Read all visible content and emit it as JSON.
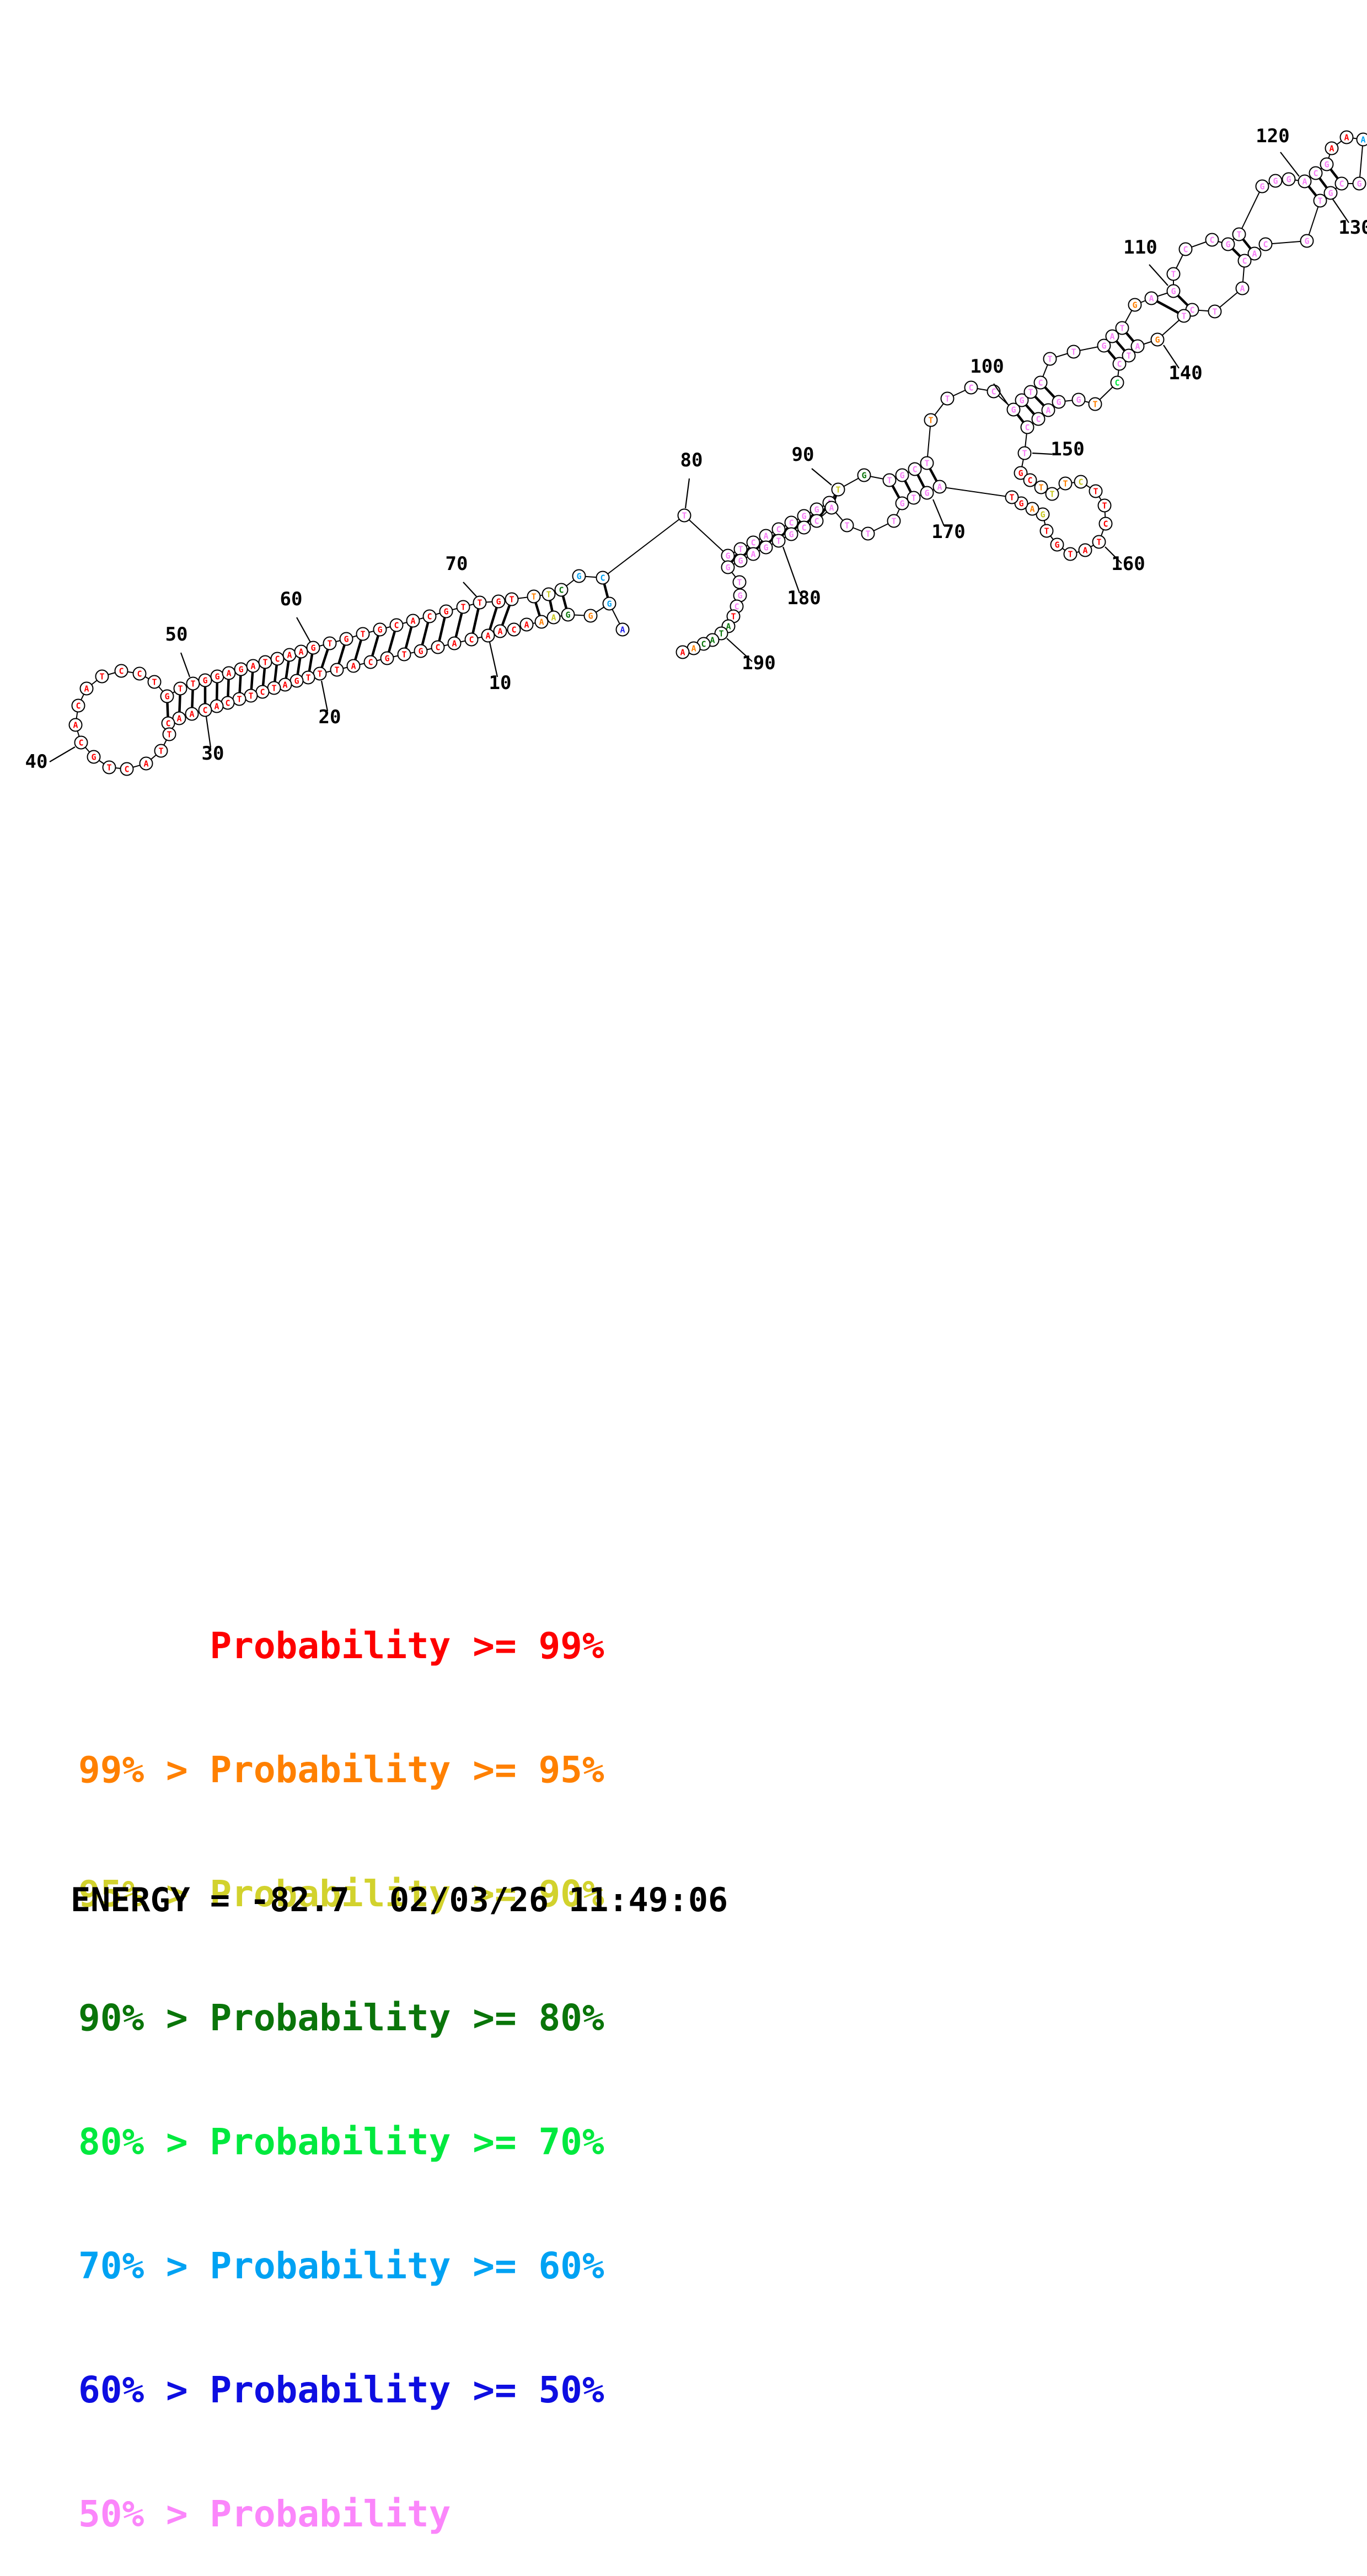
{
  "plot": {
    "colors": {
      "r": "#fe0000",
      "o": "#ff8000",
      "y": "#c8c820",
      "g": "#0a750a",
      "e": "#00e93e",
      "s": "#00a2f3",
      "b": "#2222ee",
      "p": "#f981f9"
    },
    "nucleotides": [
      [
        1129,
        1142,
        "A",
        "b"
      ],
      [
        1105,
        1095,
        "G",
        "s"
      ],
      [
        1071,
        1117,
        "G",
        "o"
      ],
      [
        1030,
        1115,
        "G",
        "g"
      ],
      [
        1004,
        1120,
        "A",
        "y"
      ],
      [
        982,
        1128,
        "A",
        "o"
      ],
      [
        955,
        1133,
        "A",
        "r"
      ],
      [
        932,
        1142,
        "C",
        "r"
      ],
      [
        907,
        1145,
        "A",
        "r"
      ],
      [
        885,
        1153,
        "A",
        "r"
      ],
      [
        855,
        1160,
        "C",
        "r"
      ],
      [
        824,
        1167,
        "A",
        "r"
      ],
      [
        794,
        1174,
        "C",
        "r"
      ],
      [
        763,
        1181,
        "G",
        "r"
      ],
      [
        733,
        1187,
        "T",
        "r"
      ],
      [
        702,
        1194,
        "G",
        "r"
      ],
      [
        672,
        1201,
        "C",
        "r"
      ],
      [
        641,
        1208,
        "A",
        "r"
      ],
      [
        611,
        1215,
        "T",
        "r"
      ],
      [
        580,
        1222,
        "T",
        "r"
      ],
      [
        559,
        1229,
        "T",
        "r"
      ],
      [
        538,
        1235,
        "G",
        "r"
      ],
      [
        517,
        1242,
        "A",
        "r"
      ],
      [
        497,
        1248,
        "T",
        "r"
      ],
      [
        476,
        1255,
        "C",
        "r"
      ],
      [
        455,
        1262,
        "T",
        "r"
      ],
      [
        434,
        1268,
        "T",
        "r"
      ],
      [
        413,
        1275,
        "C",
        "r"
      ],
      [
        393,
        1281,
        "A",
        "r"
      ],
      [
        372,
        1288,
        "C",
        "r"
      ],
      [
        348,
        1295,
        "A",
        "r"
      ],
      [
        325,
        1303,
        "A",
        "r"
      ],
      [
        305,
        1312,
        "C",
        "r"
      ],
      [
        307,
        1332,
        "T",
        "r"
      ],
      [
        292,
        1362,
        "T",
        "r"
      ],
      [
        265,
        1385,
        "A",
        "r"
      ],
      [
        230,
        1395,
        "C",
        "r"
      ],
      [
        198,
        1392,
        "T",
        "r"
      ],
      [
        170,
        1373,
        "G",
        "r"
      ],
      [
        147,
        1347,
        "C",
        "r"
      ],
      [
        137,
        1315,
        "A",
        "r"
      ],
      [
        142,
        1280,
        "C",
        "r"
      ],
      [
        157,
        1249,
        "A",
        "r"
      ],
      [
        185,
        1227,
        "T",
        "r"
      ],
      [
        220,
        1217,
        "C",
        "r"
      ],
      [
        253,
        1222,
        "C",
        "r"
      ],
      [
        280,
        1237,
        "T",
        "r"
      ],
      [
        303,
        1263,
        "G",
        "r"
      ],
      [
        327,
        1249,
        "T",
        "r"
      ],
      [
        350,
        1240,
        "T",
        "r"
      ],
      [
        372,
        1234,
        "G",
        "r"
      ],
      [
        394,
        1227,
        "G",
        "r"
      ],
      [
        415,
        1221,
        "A",
        "r"
      ],
      [
        437,
        1214,
        "G",
        "r"
      ],
      [
        459,
        1208,
        "A",
        "r"
      ],
      [
        481,
        1201,
        "T",
        "r"
      ],
      [
        503,
        1195,
        "C",
        "r"
      ],
      [
        525,
        1188,
        "A",
        "r"
      ],
      [
        546,
        1182,
        "A",
        "r"
      ],
      [
        568,
        1175,
        "G",
        "r"
      ],
      [
        598,
        1167,
        "T",
        "r"
      ],
      [
        628,
        1159,
        "G",
        "r"
      ],
      [
        658,
        1150,
        "T",
        "r"
      ],
      [
        689,
        1142,
        "G",
        "r"
      ],
      [
        719,
        1134,
        "C",
        "r"
      ],
      [
        749,
        1126,
        "A",
        "r"
      ],
      [
        779,
        1118,
        "C",
        "r"
      ],
      [
        809,
        1109,
        "G",
        "r"
      ],
      [
        840,
        1101,
        "T",
        "r"
      ],
      [
        870,
        1093,
        "T",
        "r"
      ],
      [
        904,
        1091,
        "G",
        "r"
      ],
      [
        928,
        1087,
        "T",
        "r"
      ],
      [
        968,
        1082,
        "T",
        "o"
      ],
      [
        995,
        1078,
        "T",
        "y"
      ],
      [
        1018,
        1070,
        "C",
        "g"
      ],
      [
        1050,
        1045,
        "G",
        "s"
      ],
      [
        1093,
        1048,
        "C",
        "s"
      ],
      [
        1241,
        935,
        "T",
        "p"
      ],
      [
        1320,
        1008,
        "G",
        "p"
      ],
      [
        1343,
        996,
        "T",
        "p"
      ],
      [
        1366,
        984,
        "C",
        "p"
      ],
      [
        1389,
        972,
        "A",
        "p"
      ],
      [
        1412,
        960,
        "C",
        "p"
      ],
      [
        1435,
        948,
        "C",
        "p"
      ],
      [
        1458,
        936,
        "G",
        "p"
      ],
      [
        1481,
        924,
        "G",
        "p"
      ],
      [
        1504,
        912,
        "A",
        "p"
      ],
      [
        1520,
        888,
        "T",
        "y"
      ],
      [
        1567,
        862,
        "G",
        "g"
      ],
      [
        1613,
        871,
        "T",
        "p"
      ],
      [
        1636,
        862,
        "G",
        "p"
      ],
      [
        1659,
        851,
        "C",
        "p"
      ],
      [
        1681,
        840,
        "T",
        "p"
      ],
      [
        1688,
        762,
        "T",
        "o"
      ],
      [
        1718,
        723,
        "T",
        "p"
      ],
      [
        1761,
        703,
        "C",
        "p"
      ],
      [
        1802,
        710,
        "C",
        "p"
      ],
      [
        1838,
        743,
        "G",
        "p"
      ],
      [
        1853,
        726,
        "G",
        "p"
      ],
      [
        1869,
        711,
        "T",
        "p"
      ],
      [
        1887,
        694,
        "C",
        "p"
      ],
      [
        1904,
        651,
        "T",
        "p"
      ],
      [
        1947,
        638,
        "T",
        "p"
      ],
      [
        2002,
        627,
        "G",
        "p"
      ],
      [
        2017,
        610,
        "A",
        "p"
      ],
      [
        2035,
        595,
        "T",
        "p"
      ],
      [
        2058,
        553,
        "G",
        "o"
      ],
      [
        2088,
        541,
        "A",
        "p"
      ],
      [
        2128,
        528,
        "G",
        "p"
      ],
      [
        2128,
        497,
        "T",
        "p"
      ],
      [
        2150,
        452,
        "C",
        "p"
      ],
      [
        2198,
        435,
        "C",
        "p"
      ],
      [
        2227,
        443,
        "G",
        "p"
      ],
      [
        2247,
        425,
        "T",
        "p"
      ],
      [
        2289,
        338,
        "G",
        "p"
      ],
      [
        2313,
        328,
        "G",
        "p"
      ],
      [
        2337,
        325,
        "G",
        "p"
      ],
      [
        2366,
        329,
        "A",
        "p"
      ],
      [
        2386,
        314,
        "C",
        "p"
      ],
      [
        2406,
        298,
        "G",
        "p"
      ],
      [
        2415,
        269,
        "A",
        "r"
      ],
      [
        2442,
        249,
        "A",
        "r"
      ],
      [
        2472,
        253,
        "A",
        "s"
      ],
      [
        2465,
        333,
        "G",
        "p"
      ],
      [
        2433,
        333,
        "C",
        "p"
      ],
      [
        2413,
        350,
        "G",
        "p"
      ],
      [
        2394,
        364,
        "T",
        "p"
      ],
      [
        2370,
        437,
        "G",
        "p"
      ],
      [
        2295,
        443,
        "C",
        "p"
      ],
      [
        2275,
        460,
        "A",
        "p"
      ],
      [
        2257,
        473,
        "C",
        "p"
      ],
      [
        2253,
        523,
        "A",
        "p"
      ],
      [
        2203,
        565,
        "T",
        "p"
      ],
      [
        2162,
        562,
        "C",
        "p"
      ],
      [
        2147,
        573,
        "T",
        "p"
      ],
      [
        2099,
        616,
        "G",
        "o"
      ],
      [
        2063,
        628,
        "A",
        "p"
      ],
      [
        2047,
        645,
        "T",
        "p"
      ],
      [
        2030,
        660,
        "C",
        "p"
      ],
      [
        2026,
        694,
        "C",
        "e"
      ],
      [
        1986,
        733,
        "T",
        "o"
      ],
      [
        1956,
        725,
        "G",
        "p"
      ],
      [
        1920,
        729,
        "G",
        "p"
      ],
      [
        1901,
        744,
        "A",
        "p"
      ],
      [
        1883,
        760,
        "C",
        "p"
      ],
      [
        1863,
        775,
        "C",
        "p"
      ],
      [
        1858,
        822,
        "T",
        "p"
      ],
      [
        1851,
        858,
        "G",
        "r"
      ],
      [
        1868,
        871,
        "C",
        "r"
      ],
      [
        1888,
        884,
        "T",
        "o"
      ],
      [
        1908,
        896,
        "T",
        "y"
      ],
      [
        1932,
        877,
        "T",
        "o"
      ],
      [
        1960,
        874,
        "C",
        "y"
      ],
      [
        1987,
        891,
        "T",
        "r"
      ],
      [
        2003,
        917,
        "T",
        "r"
      ],
      [
        2005,
        950,
        "C",
        "r"
      ],
      [
        1993,
        983,
        "T",
        "r"
      ],
      [
        1968,
        998,
        "A",
        "r"
      ],
      [
        1941,
        1005,
        "T",
        "r"
      ],
      [
        1917,
        988,
        "G",
        "r"
      ],
      [
        1898,
        963,
        "T",
        "r"
      ],
      [
        1891,
        933,
        "G",
        "y"
      ],
      [
        1872,
        923,
        "A",
        "o"
      ],
      [
        1852,
        913,
        "G",
        "r"
      ],
      [
        1835,
        902,
        "T",
        "r"
      ],
      [
        1704,
        883,
        "A",
        "p"
      ],
      [
        1681,
        894,
        "G",
        "p"
      ],
      [
        1657,
        903,
        "T",
        "p"
      ],
      [
        1636,
        913,
        "G",
        "p"
      ],
      [
        1621,
        945,
        "T",
        "p"
      ],
      [
        1574,
        968,
        "T",
        "p"
      ],
      [
        1536,
        953,
        "T",
        "p"
      ],
      [
        1508,
        921,
        "A",
        "p"
      ],
      [
        1481,
        945,
        "C",
        "p"
      ],
      [
        1458,
        957,
        "C",
        "p"
      ],
      [
        1435,
        969,
        "G",
        "p"
      ],
      [
        1412,
        981,
        "T",
        "p"
      ],
      [
        1389,
        993,
        "G",
        "p"
      ],
      [
        1366,
        1005,
        "A",
        "p"
      ],
      [
        1343,
        1017,
        "G",
        "p"
      ],
      [
        1320,
        1029,
        "G",
        "p"
      ],
      [
        1341,
        1056,
        "T",
        "p"
      ],
      [
        1342,
        1080,
        "G",
        "p"
      ],
      [
        1336,
        1100,
        "C",
        "p"
      ],
      [
        1330,
        1118,
        "T",
        "r"
      ],
      [
        1321,
        1136,
        "A",
        "g"
      ],
      [
        1308,
        1149,
        "T",
        "g"
      ],
      [
        1292,
        1161,
        "A",
        "g"
      ],
      [
        1276,
        1168,
        "C",
        "g"
      ],
      [
        1258,
        1176,
        "A",
        "o"
      ],
      [
        1238,
        1183,
        "A",
        "r"
      ]
    ],
    "pairs": [
      [
        2,
        77
      ],
      [
        4,
        75
      ],
      [
        5,
        74
      ],
      [
        6,
        73
      ],
      [
        9,
        72
      ],
      [
        10,
        71
      ],
      [
        11,
        70
      ],
      [
        12,
        69
      ],
      [
        13,
        68
      ],
      [
        14,
        67
      ],
      [
        15,
        66
      ],
      [
        16,
        65
      ],
      [
        17,
        64
      ],
      [
        18,
        63
      ],
      [
        19,
        62
      ],
      [
        20,
        61
      ],
      [
        21,
        60
      ],
      [
        22,
        59
      ],
      [
        23,
        58
      ],
      [
        24,
        57
      ],
      [
        25,
        56
      ],
      [
        26,
        55
      ],
      [
        27,
        54
      ],
      [
        28,
        53
      ],
      [
        29,
        52
      ],
      [
        30,
        51
      ],
      [
        31,
        50
      ],
      [
        32,
        49
      ],
      [
        33,
        48
      ],
      [
        80,
        181
      ],
      [
        81,
        180
      ],
      [
        82,
        179
      ],
      [
        83,
        178
      ],
      [
        84,
        177
      ],
      [
        85,
        176
      ],
      [
        86,
        175
      ],
      [
        87,
        174
      ],
      [
        88,
        173
      ],
      [
        90,
        169
      ],
      [
        91,
        168
      ],
      [
        92,
        167
      ],
      [
        93,
        166
      ],
      [
        98,
        146
      ],
      [
        99,
        145
      ],
      [
        100,
        144
      ],
      [
        101,
        143
      ],
      [
        104,
        139
      ],
      [
        105,
        138
      ],
      [
        106,
        137
      ],
      [
        108,
        135
      ],
      [
        109,
        134
      ],
      [
        113,
        131
      ],
      [
        114,
        130
      ],
      [
        118,
        127
      ],
      [
        119,
        126
      ],
      [
        120,
        125
      ]
    ],
    "labels": [
      [
        "10",
        907,
        1250,
        888,
        1165,
        902,
        1228
      ],
      [
        "20",
        598,
        1312,
        583,
        1235,
        594,
        1290
      ],
      [
        "30",
        386,
        1378,
        374,
        1300,
        382,
        1356
      ],
      [
        "40",
        66,
        1393,
        136,
        1355,
        90,
        1382
      ],
      [
        "50",
        320,
        1162,
        344,
        1228,
        328,
        1184
      ],
      [
        "60",
        528,
        1098,
        563,
        1165,
        538,
        1120
      ],
      [
        "70",
        828,
        1034,
        864,
        1082,
        840,
        1056
      ],
      [
        "80",
        1254,
        846,
        1243,
        922,
        1250,
        868
      ],
      [
        "90",
        1456,
        836,
        1508,
        880,
        1472,
        850
      ],
      [
        "100",
        1790,
        676,
        1828,
        734,
        1802,
        696
      ],
      [
        "110",
        2068,
        460,
        2118,
        518,
        2084,
        480
      ],
      [
        "120",
        2308,
        258,
        2356,
        320,
        2322,
        276
      ],
      [
        "130",
        2458,
        424,
        2416,
        360,
        2446,
        404
      ],
      [
        "140",
        2150,
        688,
        2110,
        626,
        2138,
        668
      ],
      [
        "150",
        1936,
        826,
        1872,
        822,
        1908,
        824
      ],
      [
        "160",
        2046,
        1034,
        2004,
        992,
        2034,
        1022
      ],
      [
        "170",
        1720,
        976,
        1692,
        906,
        1712,
        954
      ],
      [
        "180",
        1458,
        1096,
        1420,
        992,
        1450,
        1076
      ],
      [
        "190",
        1376,
        1214,
        1318,
        1158,
        1364,
        1200
      ]
    ]
  },
  "legend": {
    "rows": [
      {
        "text": "      Probability >= 99%",
        "color": "#fe0000"
      },
      {
        "text": "99% > Probability >= 95%",
        "color": "#ff8000"
      },
      {
        "text": "95% > Probability >= 90%",
        "color": "#d2d22d"
      },
      {
        "text": "90% > Probability >= 80%",
        "color": "#0a750a"
      },
      {
        "text": "80% > Probability >= 70%",
        "color": "#00e93e"
      },
      {
        "text": "70% > Probability >= 60%",
        "color": "#00a2f3"
      },
      {
        "text": "60% > Probability >= 50%",
        "color": "#0e0ee1"
      },
      {
        "text": "50% > Probability",
        "color": "#fb86fb"
      }
    ]
  },
  "energy": {
    "text": "ENERGY = -82.7  02/03/26 11:49:06"
  }
}
